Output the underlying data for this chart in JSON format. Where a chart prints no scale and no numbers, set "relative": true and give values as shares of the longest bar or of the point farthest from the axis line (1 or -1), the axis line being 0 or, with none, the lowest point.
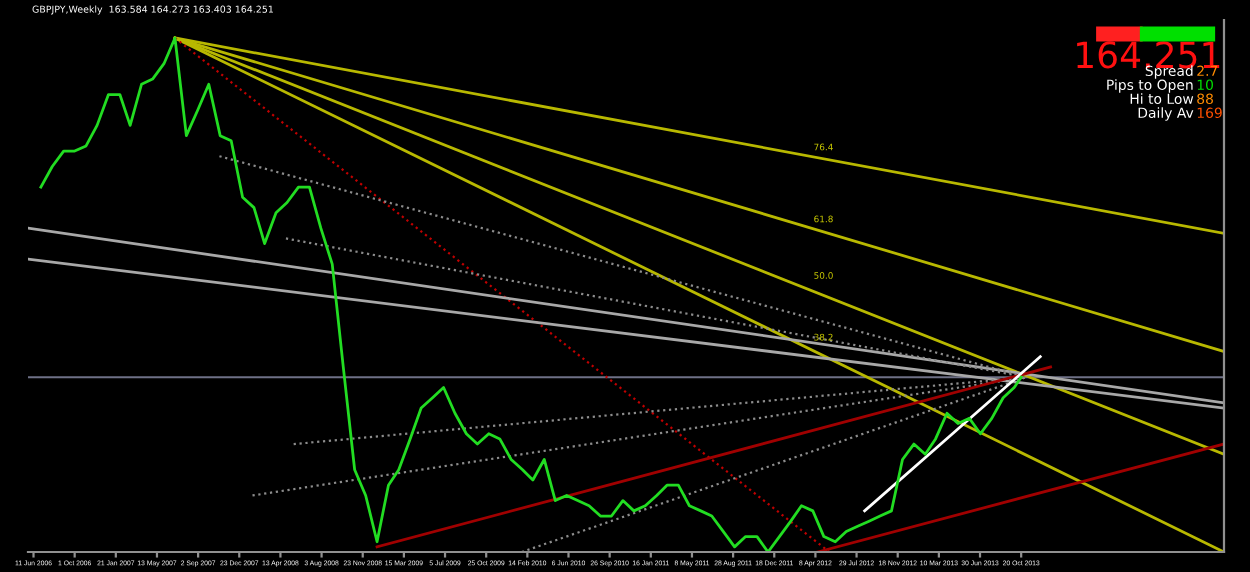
{
  "chart_data": {
    "type": "line",
    "title": "GBPJPY,Weekly  163.584 164.273 163.403 164.251",
    "relative": true,
    "tick_labels": "x",
    "grid": false,
    "xlim": [
      "2006-05-27",
      "2015-04-25"
    ],
    "xticks": [
      {
        "value": "2006-06-11",
        "label": "11 Jun 2006"
      },
      {
        "value": "2006-10-01",
        "label": "1 Oct 2006"
      },
      {
        "value": "2007-01-21",
        "label": "21 Jan 2007"
      },
      {
        "value": "2007-05-13",
        "label": "13 May 2007"
      },
      {
        "value": "2007-09-02",
        "label": "2 Sep 2007"
      },
      {
        "value": "2007-12-23",
        "label": "23 Dec 2007"
      },
      {
        "value": "2008-04-13",
        "label": "13 Apr 2008"
      },
      {
        "value": "2008-08-03",
        "label": "3 Aug 2008"
      },
      {
        "value": "2008-11-23",
        "label": "23 Nov 2008"
      },
      {
        "value": "2009-03-15",
        "label": "15 Mar 2009"
      },
      {
        "value": "2009-07-05",
        "label": "5 Jul 2009"
      },
      {
        "value": "2009-10-25",
        "label": "25 Oct 2009"
      },
      {
        "value": "2010-02-14",
        "label": "14 Feb 2010"
      },
      {
        "value": "2010-06-06",
        "label": "6 Jun 2010"
      },
      {
        "value": "2010-09-26",
        "label": "26 Sep 2010"
      },
      {
        "value": "2011-01-16",
        "label": "16 Jan 2011"
      },
      {
        "value": "2011-05-08",
        "label": "8 May 2011"
      },
      {
        "value": "2011-08-28",
        "label": "28 Aug 2011"
      },
      {
        "value": "2011-12-18",
        "label": "18 Dec 2011"
      },
      {
        "value": "2012-04-08",
        "label": "8 Apr 2012"
      },
      {
        "value": "2012-07-29",
        "label": "29 Jul 2012"
      },
      {
        "value": "2012-11-18",
        "label": "18 Nov 2012"
      },
      {
        "value": "2013-03-10",
        "label": "10 Mar 2013"
      },
      {
        "value": "2013-06-30",
        "label": "30 Jun 2013"
      },
      {
        "value": "2013-10-20",
        "label": "20 Oct 2013"
      }
    ],
    "ref_lines": [
      {
        "axis": "y",
        "value": 0.34,
        "label": null,
        "color": "#6e7086",
        "line_style": "solid"
      }
    ],
    "annotations": [
      "164.251",
      "Spread",
      "2.7",
      "Pips to Open",
      "10",
      "Hi to Low",
      "88",
      "Daily Av",
      "169",
      {
        "text": "76.4",
        "x": "2012-04-30",
        "y": 0.77
      },
      {
        "text": "61.8",
        "x": "2012-04-30",
        "y": 0.63
      },
      {
        "text": "50.0",
        "x": "2012-04-30",
        "y": 0.52
      },
      {
        "text": "38.2",
        "x": "2012-04-30",
        "y": 0.4
      }
    ],
    "series": [
      {
        "color": "#22dd22",
        "line_style": "solid",
        "x": [
          "2006-07",
          "2006-08",
          "2006-09",
          "2006-10",
          "2006-11",
          "2006-12",
          "2007-01",
          "2007-02",
          "2007-03",
          "2007-04",
          "2007-05",
          "2007-06",
          "2007-07",
          "2007-08",
          "2007-09",
          "2007-10",
          "2007-11",
          "2007-12",
          "2008-01",
          "2008-02",
          "2008-03",
          "2008-04",
          "2008-05",
          "2008-06",
          "2008-07",
          "2008-08",
          "2008-09",
          "2008-10",
          "2008-11",
          "2008-12",
          "2009-01",
          "2009-02",
          "2009-03",
          "2009-04",
          "2009-05",
          "2009-06",
          "2009-07",
          "2009-08",
          "2009-09",
          "2009-10",
          "2009-11",
          "2009-12",
          "2010-01",
          "2010-02",
          "2010-03",
          "2010-04",
          "2010-05",
          "2010-06",
          "2010-07",
          "2010-08",
          "2010-09",
          "2010-10",
          "2010-11",
          "2010-12",
          "2011-01",
          "2011-02",
          "2011-03",
          "2011-04",
          "2011-05",
          "2011-06",
          "2011-07",
          "2011-08",
          "2011-09",
          "2011-10",
          "2011-11",
          "2011-12",
          "2012-01",
          "2012-02",
          "2012-03",
          "2012-04",
          "2012-05",
          "2012-06",
          "2012-07",
          "2012-08",
          "2012-09",
          "2012-10",
          "2012-11",
          "2012-12",
          "2013-01",
          "2013-02",
          "2013-03",
          "2013-04",
          "2013-05",
          "2013-06",
          "2013-07",
          "2013-08",
          "2013-09",
          "2013-10",
          "2013-10-20"
        ],
        "values": [
          0.71,
          0.75,
          0.78,
          0.78,
          0.79,
          0.83,
          0.89,
          0.89,
          0.83,
          0.91,
          0.92,
          0.95,
          1.0,
          0.81,
          0.86,
          0.91,
          0.81,
          0.8,
          0.69,
          0.67,
          0.6,
          0.66,
          0.68,
          0.71,
          0.71,
          0.63,
          0.56,
          0.36,
          0.16,
          0.11,
          0.02,
          0.13,
          0.16,
          0.22,
          0.28,
          0.3,
          0.32,
          0.27,
          0.23,
          0.21,
          0.23,
          0.22,
          0.18,
          0.16,
          0.14,
          0.18,
          0.1,
          0.11,
          0.1,
          0.09,
          0.07,
          0.07,
          0.1,
          0.08,
          0.09,
          0.11,
          0.13,
          0.13,
          0.09,
          0.08,
          0.07,
          0.04,
          0.01,
          0.03,
          0.03,
          0.0,
          0.03,
          0.06,
          0.09,
          0.08,
          0.03,
          0.02,
          0.04,
          0.05,
          0.06,
          0.07,
          0.08,
          0.18,
          0.21,
          0.19,
          0.22,
          0.27,
          0.25,
          0.26,
          0.23,
          0.26,
          0.3,
          0.32,
          0.34
        ]
      },
      {
        "type": "line",
        "color": "#b8b800",
        "line_style": "solid",
        "x": [
          "2007-07",
          "2015-04-25"
        ],
        "values": [
          1.0,
          0.62
        ]
      },
      {
        "type": "line",
        "color": "#b8b800",
        "line_style": "solid",
        "x": [
          "2007-07",
          "2015-04-25"
        ],
        "values": [
          1.0,
          0.39
        ]
      },
      {
        "type": "line",
        "color": "#b8b800",
        "line_style": "solid",
        "x": [
          "2007-07",
          "2015-04-25"
        ],
        "values": [
          1.0,
          0.19
        ]
      },
      {
        "type": "line",
        "color": "#b8b800",
        "line_style": "solid",
        "x": [
          "2007-07",
          "2015-04-25"
        ],
        "values": [
          1.0,
          0.0
        ]
      },
      {
        "type": "line",
        "color": "#c00000",
        "line_style": "dotted",
        "x": [
          "2007-07",
          "2012-05-16"
        ],
        "values": [
          1.0,
          0.0
        ]
      },
      {
        "type": "line",
        "color": "#a8a8a8",
        "line_style": "solid",
        "x": [
          "2006-05-27",
          "2015-04-25"
        ],
        "values": [
          0.63,
          0.29
        ]
      },
      {
        "type": "line",
        "color": "#a8a8a8",
        "line_style": "solid",
        "x": [
          "2006-05-27",
          "2015-04-25"
        ],
        "values": [
          0.57,
          0.28
        ]
      },
      {
        "type": "line",
        "color": "#8c8c8c",
        "line_style": "dotted",
        "x": [
          "2007-10-30",
          "2013-11-03"
        ],
        "values": [
          0.77,
          0.34
        ]
      },
      {
        "type": "line",
        "color": "#8c8c8c",
        "line_style": "dotted",
        "x": [
          "2008-04-28",
          "2013-11-03"
        ],
        "values": [
          0.61,
          0.34
        ]
      },
      {
        "type": "line",
        "color": "#8c8c8c",
        "line_style": "dotted",
        "x": [
          "2008-05-19",
          "2013-11-03"
        ],
        "values": [
          0.21,
          0.34
        ]
      },
      {
        "type": "line",
        "color": "#8c8c8c",
        "line_style": "dotted",
        "x": [
          "2008-01-28",
          "2013-11-03"
        ],
        "values": [
          0.11,
          0.34
        ]
      },
      {
        "type": "line",
        "color": "#8c8c8c",
        "line_style": "dotted",
        "x": [
          "2010-01-30",
          "2013-11-03"
        ],
        "values": [
          0.0,
          0.34
        ]
      },
      {
        "type": "line",
        "color": "#a00000",
        "line_style": "solid",
        "x": [
          "2009-01-01",
          "2014-01-08"
        ],
        "values": [
          0.01,
          0.36
        ]
      },
      {
        "type": "line",
        "color": "#a00000",
        "line_style": "solid",
        "x": [
          "2012-04-14",
          "2015-04-25"
        ],
        "values": [
          0.0,
          0.21
        ]
      },
      {
        "type": "line",
        "color": "#ffffff",
        "line_style": "solid",
        "x": [
          "2012-08-20",
          "2013-12-11"
        ],
        "values": [
          0.08,
          0.38
        ]
      }
    ]
  }
}
